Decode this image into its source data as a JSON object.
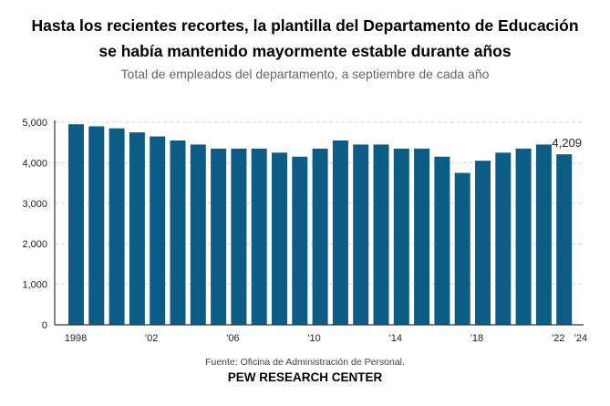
{
  "chart_data": {
    "type": "bar",
    "title": "Hasta los recientes recortes, la plantilla del Departamento de Educación se había mantenido mayormente estable durante años",
    "title_lines": [
      "Hasta los recientes recortes, la plantilla del Departamento de Educación",
      "se había mantenido mayormente estable durante años"
    ],
    "subtitle": "Total de empleados del departamento, a septiembre de cada año",
    "xlabel": "",
    "ylabel": "",
    "categories": [
      "1998",
      "1999",
      "2000",
      "2001",
      "2002",
      "2003",
      "2004",
      "2005",
      "2006",
      "2007",
      "2008",
      "2009",
      "2010",
      "2011",
      "2012",
      "2013",
      "2014",
      "2015",
      "2016",
      "2017",
      "2018",
      "2019",
      "2020",
      "2021",
      "2022"
    ],
    "values": [
      4950,
      4900,
      4850,
      4750,
      4650,
      4550,
      4450,
      4350,
      4350,
      4350,
      4250,
      4150,
      4350,
      4550,
      4450,
      4450,
      4350,
      4350,
      4150,
      3750,
      4050,
      4250,
      4350,
      4450,
      4209
    ],
    "x_tick_labels": [
      "1998",
      "'02",
      "'06",
      "'10",
      "'14",
      "'18",
      "'22",
      "'24"
    ],
    "x_tick_years": [
      1998,
      2002,
      2006,
      2010,
      2014,
      2018,
      2022,
      2024
    ],
    "y_ticks": [
      0,
      1000,
      2000,
      3000,
      4000,
      5000
    ],
    "y_tick_labels": [
      "0",
      "1,000",
      "2,000",
      "3,000",
      "4,000",
      "5,000"
    ],
    "ylim": [
      0,
      5000
    ],
    "grid": true,
    "annotations": [
      {
        "category": "2022",
        "text": "4,209"
      }
    ],
    "bar_color": "#0d5c85",
    "legend": "none"
  },
  "footer": {
    "source": "Fuente: Oficina de Administración de Personal.",
    "brand": "PEW RESEARCH CENTER"
  }
}
